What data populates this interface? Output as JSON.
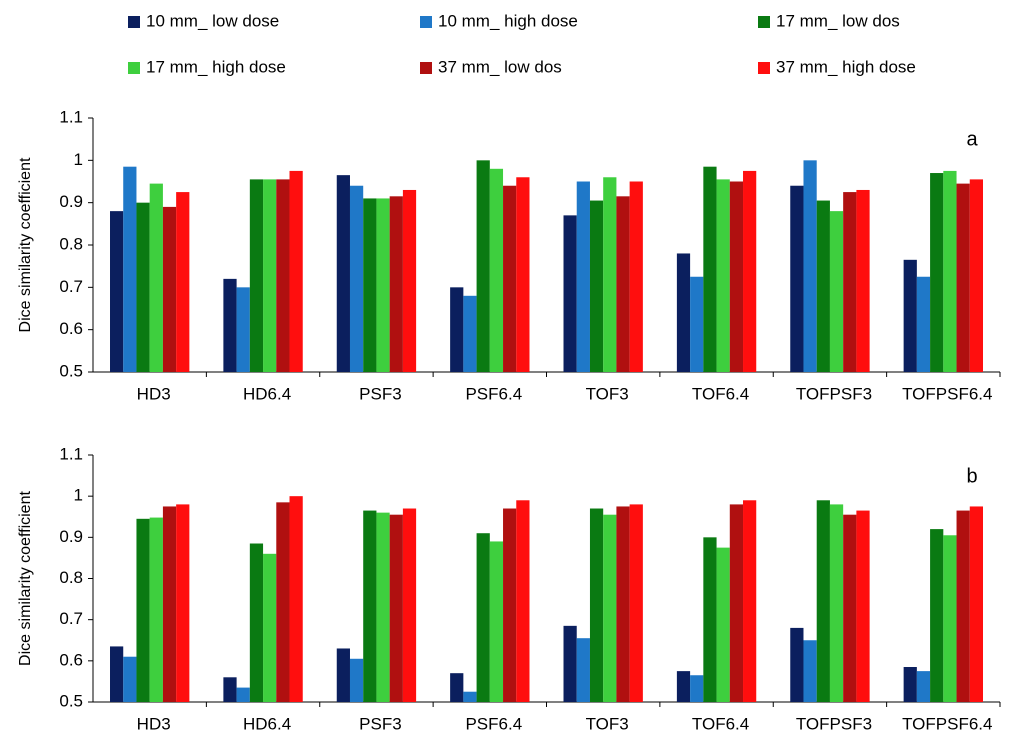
{
  "chart_data": [
    {
      "type": "bar",
      "label": "a",
      "y_label": "Dice similarity coefficient",
      "categories": [
        "HD3",
        "HD6.4",
        "PSF3",
        "PSF6.4",
        "TOF3",
        "TOF6.4",
        "TOFPSF3",
        "TOFPSF6.4"
      ],
      "series": [
        {
          "name": "10 mm_ low dose",
          "color": "#0b1f5e",
          "values": [
            0.88,
            0.72,
            0.965,
            0.7,
            0.87,
            0.78,
            0.94,
            0.765
          ]
        },
        {
          "name": "10 mm_ high dose",
          "color": "#1f78c8",
          "values": [
            0.985,
            0.7,
            0.94,
            0.68,
            0.95,
            0.725,
            1.0,
            0.725
          ]
        },
        {
          "name": "17 mm_ low dos",
          "color": "#0a7a12",
          "values": [
            0.9,
            0.955,
            0.91,
            1.0,
            0.905,
            0.985,
            0.905,
            0.97
          ]
        },
        {
          "name": "17 mm_ high dose",
          "color": "#3ecf3e",
          "values": [
            0.945,
            0.955,
            0.91,
            0.98,
            0.96,
            0.955,
            0.88,
            0.975
          ]
        },
        {
          "name": "37 mm_ low dos",
          "color": "#b01010",
          "values": [
            0.89,
            0.955,
            0.915,
            0.94,
            0.915,
            0.95,
            0.925,
            0.945
          ]
        },
        {
          "name": "37 mm_ high dose",
          "color": "#ff0e0e",
          "values": [
            0.925,
            0.975,
            0.93,
            0.96,
            0.95,
            0.975,
            0.93,
            0.955
          ]
        }
      ],
      "ylim": [
        0.5,
        1.1
      ],
      "yticks": [
        0.5,
        0.6,
        0.7,
        0.8,
        0.9,
        1,
        1.1
      ],
      "grid": false
    },
    {
      "type": "bar",
      "label": "b",
      "y_label": "Dice similarity coefficient",
      "categories": [
        "HD3",
        "HD6.4",
        "PSF3",
        "PSF6.4",
        "TOF3",
        "TOF6.4",
        "TOFPSF3",
        "TOFPSF6.4"
      ],
      "series": [
        {
          "name": "10 mm_ low dose",
          "color": "#0b1f5e",
          "values": [
            0.635,
            0.56,
            0.63,
            0.57,
            0.685,
            0.575,
            0.68,
            0.585
          ]
        },
        {
          "name": "10 mm_ high dose",
          "color": "#1f78c8",
          "values": [
            0.61,
            0.535,
            0.605,
            0.525,
            0.655,
            0.565,
            0.65,
            0.575
          ]
        },
        {
          "name": "17 mm_ low dos",
          "color": "#0a7a12",
          "values": [
            0.945,
            0.885,
            0.965,
            0.91,
            0.97,
            0.9,
            0.99,
            0.92
          ]
        },
        {
          "name": "17 mm_ high dose",
          "color": "#3ecf3e",
          "values": [
            0.948,
            0.86,
            0.96,
            0.89,
            0.955,
            0.875,
            0.98,
            0.905
          ]
        },
        {
          "name": "37 mm_ low dos",
          "color": "#b01010",
          "values": [
            0.975,
            0.985,
            0.955,
            0.97,
            0.975,
            0.98,
            0.955,
            0.965
          ]
        },
        {
          "name": "37 mm_ high dose",
          "color": "#ff0e0e",
          "values": [
            0.98,
            1.0,
            0.97,
            0.99,
            0.98,
            0.99,
            0.965,
            0.975
          ]
        }
      ],
      "ylim": [
        0.5,
        1.1
      ],
      "yticks": [
        0.5,
        0.6,
        0.7,
        0.8,
        0.9,
        1,
        1.1
      ],
      "grid": false
    }
  ]
}
